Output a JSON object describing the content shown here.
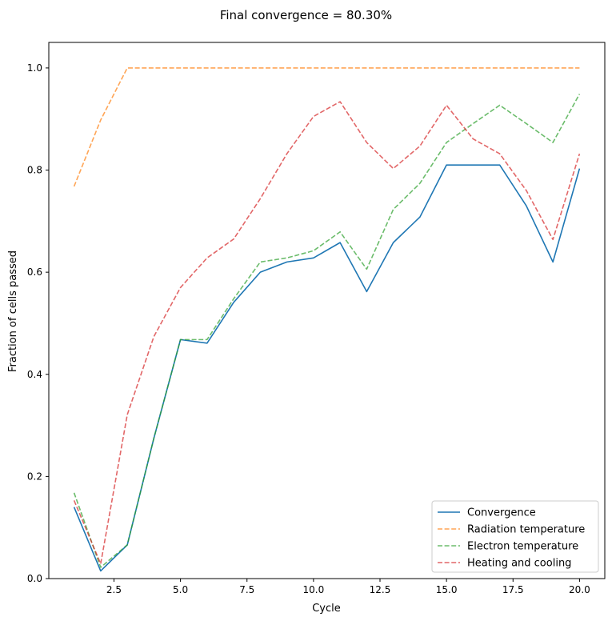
{
  "chart_data": {
    "type": "line",
    "title": "Final convergence = 80.30%",
    "xlabel": "Cycle",
    "ylabel": "Fraction of cells passed",
    "xlim": [
      0.05,
      20.95
    ],
    "ylim": [
      0.0,
      1.05
    ],
    "xticks": [
      2.5,
      5.0,
      7.5,
      10.0,
      12.5,
      15.0,
      17.5,
      20.0
    ],
    "xtick_labels": [
      "2.5",
      "5.0",
      "7.5",
      "10.0",
      "12.5",
      "15.0",
      "17.5",
      "20.0"
    ],
    "yticks": [
      0.0,
      0.2,
      0.4,
      0.6,
      0.8,
      1.0
    ],
    "ytick_labels": [
      "0.0",
      "0.2",
      "0.4",
      "0.6",
      "0.8",
      "1.0"
    ],
    "grid": false,
    "legend_position": "lower-right",
    "x": [
      1,
      2,
      3,
      4,
      5,
      6,
      7,
      8,
      9,
      10,
      11,
      12,
      13,
      14,
      15,
      16,
      17,
      18,
      19,
      20
    ],
    "series": [
      {
        "name": "Convergence",
        "color": "#1f77b4",
        "style": "solid",
        "values": [
          0.14,
          0.015,
          0.066,
          0.275,
          0.468,
          0.461,
          0.541,
          0.6,
          0.62,
          0.628,
          0.658,
          0.562,
          0.658,
          0.708,
          0.81,
          0.81,
          0.81,
          0.73,
          0.62,
          0.803
        ]
      },
      {
        "name": "Radiation temperature",
        "color": "#ff7f0e",
        "style": "dashed",
        "values": [
          0.768,
          0.898,
          1.0,
          1.0,
          1.0,
          1.0,
          1.0,
          1.0,
          1.0,
          1.0,
          1.0,
          1.0,
          1.0,
          1.0,
          1.0,
          1.0,
          1.0,
          1.0,
          1.0,
          1.0
        ]
      },
      {
        "name": "Electron temperature",
        "color": "#2ca02c",
        "style": "dashed",
        "values": [
          0.168,
          0.022,
          0.066,
          0.275,
          0.468,
          0.468,
          0.548,
          0.62,
          0.628,
          0.642,
          0.679,
          0.606,
          0.723,
          0.774,
          0.854,
          0.891,
          0.927,
          0.891,
          0.854,
          0.949
        ]
      },
      {
        "name": "Heating and cooling",
        "color": "#d62728",
        "style": "dashed",
        "values": [
          0.153,
          0.029,
          0.321,
          0.474,
          0.57,
          0.628,
          0.665,
          0.744,
          0.832,
          0.905,
          0.934,
          0.854,
          0.803,
          0.847,
          0.927,
          0.861,
          0.832,
          0.76,
          0.664,
          0.832
        ]
      }
    ]
  }
}
